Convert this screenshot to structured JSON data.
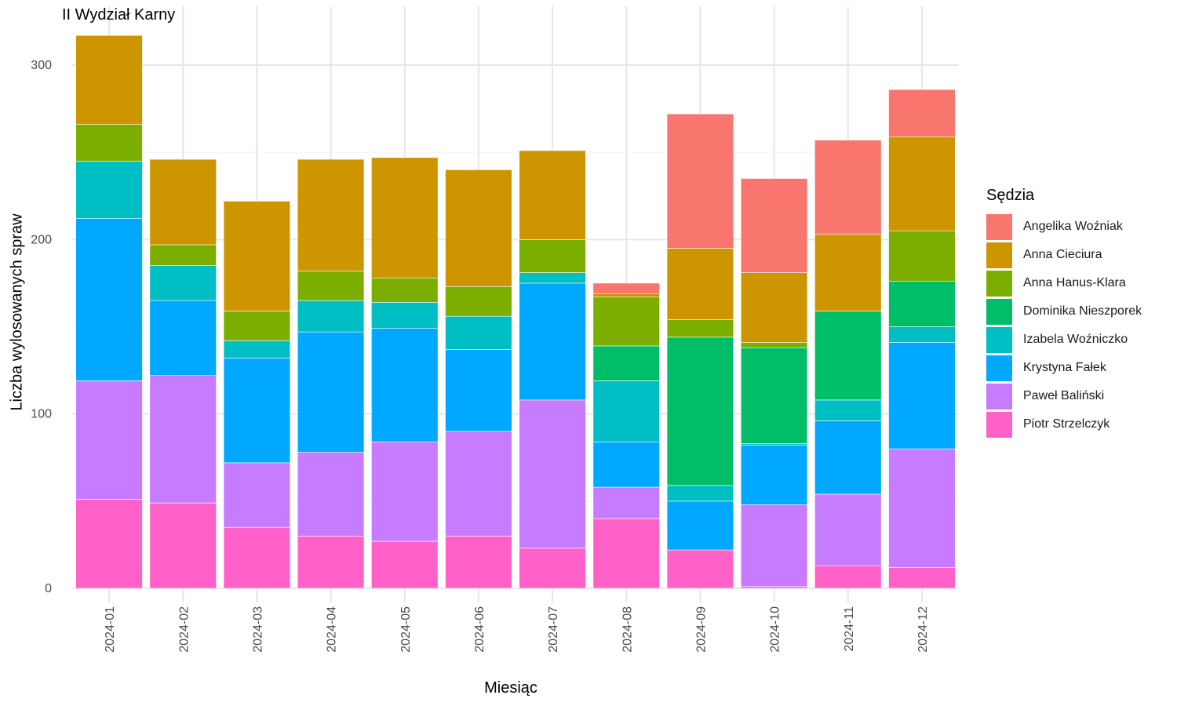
{
  "chart_data": {
    "type": "bar",
    "stacked": true,
    "title": "II Wydział Karny",
    "xlabel": "Miesiąc",
    "ylabel": "Liczba wylosowanych spraw",
    "ylim": [
      0,
      320
    ],
    "yticks": [
      0,
      100,
      200,
      300
    ],
    "grid": true,
    "legend_title": "Sędzia",
    "legend_position": "right",
    "categories": [
      "2024-01",
      "2024-02",
      "2024-03",
      "2024-04",
      "2024-05",
      "2024-06",
      "2024-07",
      "2024-08",
      "2024-09",
      "2024-10",
      "2024-11",
      "2024-12"
    ],
    "series": [
      {
        "name": "Piotr Strzelczyk",
        "color": "#FF61C9",
        "values": [
          51,
          49,
          35,
          30,
          27,
          30,
          23,
          40,
          22,
          1,
          13,
          12
        ]
      },
      {
        "name": "Paweł Baliński",
        "color": "#C77CFF",
        "values": [
          68,
          73,
          37,
          48,
          57,
          60,
          85,
          18,
          0,
          47,
          41,
          68
        ]
      },
      {
        "name": "Krystyna Fałek",
        "color": "#00A9FF",
        "values": [
          93,
          43,
          60,
          69,
          65,
          47,
          67,
          26,
          28,
          34,
          42,
          61
        ]
      },
      {
        "name": "Izabela Woźniczko",
        "color": "#00BFC4",
        "values": [
          33,
          20,
          10,
          18,
          15,
          19,
          6,
          35,
          9,
          1,
          12,
          9
        ]
      },
      {
        "name": "Dominika Nieszporek",
        "color": "#00BE67",
        "values": [
          0,
          0,
          0,
          0,
          0,
          0,
          0,
          20,
          85,
          55,
          51,
          26
        ]
      },
      {
        "name": "Anna Hanus-Klara",
        "color": "#7CAE00",
        "values": [
          21,
          12,
          17,
          17,
          14,
          17,
          19,
          28,
          10,
          3,
          0,
          29
        ]
      },
      {
        "name": "Anna Cieciura",
        "color": "#CD9600",
        "values": [
          51,
          49,
          63,
          64,
          69,
          67,
          51,
          2,
          41,
          40,
          44,
          54
        ]
      },
      {
        "name": "Angelika Woźniak",
        "color": "#F8766D",
        "values": [
          0,
          0,
          0,
          0,
          0,
          0,
          0,
          6,
          77,
          54,
          54,
          27
        ]
      }
    ],
    "legend_order": [
      "Angelika Woźniak",
      "Anna Cieciura",
      "Anna Hanus-Klara",
      "Dominika Nieszporek",
      "Izabela Woźniczko",
      "Krystyna Fałek",
      "Paweł Baliński",
      "Piotr Strzelczyk"
    ]
  }
}
